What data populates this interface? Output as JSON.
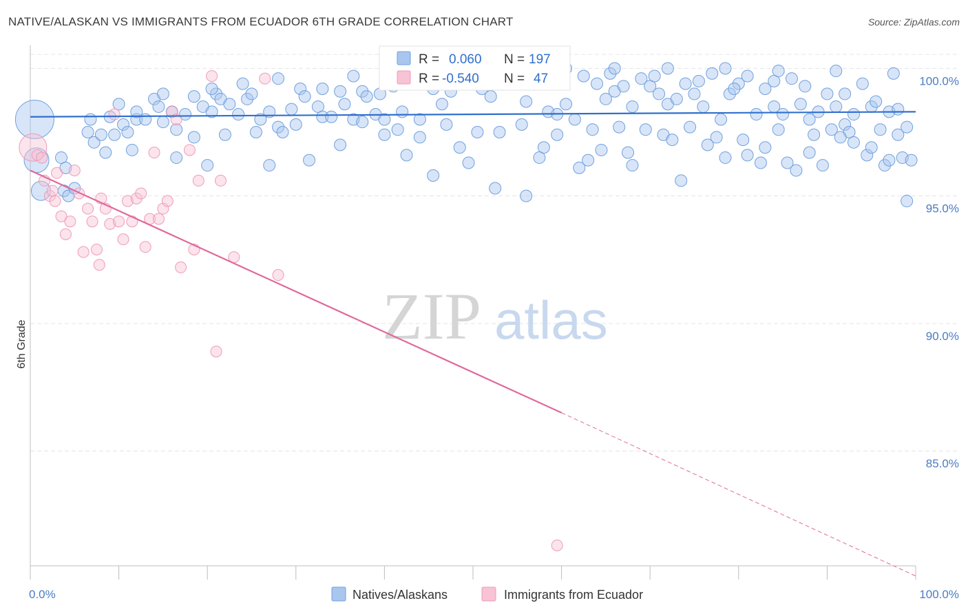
{
  "title": "NATIVE/ALASKAN VS IMMIGRANTS FROM ECUADOR 6TH GRADE CORRELATION CHART",
  "source": "Source: ZipAtlas.com",
  "watermark": {
    "zip": "ZIP",
    "atlas": "atlas"
  },
  "legend_top": [
    {
      "r_label": "R =",
      "r_value": "0.060",
      "n_label": "N =",
      "n_value": "197"
    },
    {
      "r_label": "R =",
      "r_value": "-0.540",
      "n_label": "N =",
      "n_value": "47"
    }
  ],
  "chart_data": {
    "type": "scatter",
    "title": "NATIVE/ALASKAN VS IMMIGRANTS FROM ECUADOR 6TH GRADE CORRELATION CHART",
    "xlabel": "",
    "ylabel": "6th Grade",
    "xlim": [
      0,
      100
    ],
    "ylim": [
      80.5,
      100.9
    ],
    "x_tick_labels": [
      "0.0%",
      "100.0%"
    ],
    "y_ticks": [
      85,
      90,
      95,
      100
    ],
    "y_tick_labels": [
      "85.0%",
      "90.0%",
      "95.0%",
      "100.0%"
    ],
    "grid": true,
    "legend_position": "bottom",
    "colors": {
      "natives": "#6fa0dd",
      "ecuador": "#f09ab8",
      "natives_line": "#2f6fcc",
      "ecuador_line": "#e0689a",
      "tick_label": "#4a7cc4"
    },
    "series": [
      {
        "name": "Natives/Alaskans",
        "r": 0.06,
        "n": 197,
        "trend": {
          "x": [
            0,
            100
          ],
          "y": [
            98.1,
            98.3
          ]
        },
        "points": [
          {
            "x": 0.5,
            "y": 98.0,
            "s": 28
          },
          {
            "x": 0.7,
            "y": 96.4,
            "s": 18
          },
          {
            "x": 1.2,
            "y": 95.2,
            "s": 14
          },
          {
            "x": 3.5,
            "y": 96.5
          },
          {
            "x": 3.8,
            "y": 95.2
          },
          {
            "x": 4.0,
            "y": 96.1
          },
          {
            "x": 4.3,
            "y": 95.0
          },
          {
            "x": 5.0,
            "y": 95.3
          },
          {
            "x": 6.5,
            "y": 97.5
          },
          {
            "x": 6.8,
            "y": 98.0
          },
          {
            "x": 7.2,
            "y": 97.1
          },
          {
            "x": 8.0,
            "y": 97.4
          },
          {
            "x": 8.5,
            "y": 96.7
          },
          {
            "x": 9.5,
            "y": 97.4
          },
          {
            "x": 10.5,
            "y": 97.8
          },
          {
            "x": 11.0,
            "y": 97.5
          },
          {
            "x": 12.0,
            "y": 98.0
          },
          {
            "x": 13.0,
            "y": 98.0
          },
          {
            "x": 14.0,
            "y": 98.8
          },
          {
            "x": 15.0,
            "y": 99.0
          },
          {
            "x": 16.0,
            "y": 98.3
          },
          {
            "x": 16.5,
            "y": 97.6
          },
          {
            "x": 17.5,
            "y": 98.2
          },
          {
            "x": 18.5,
            "y": 98.9
          },
          {
            "x": 19.5,
            "y": 98.5
          },
          {
            "x": 20.5,
            "y": 98.3
          },
          {
            "x": 21.0,
            "y": 99.0
          },
          {
            "x": 21.5,
            "y": 98.8
          },
          {
            "x": 22.5,
            "y": 98.6
          },
          {
            "x": 23.5,
            "y": 98.2
          },
          {
            "x": 24.5,
            "y": 98.8
          },
          {
            "x": 25.0,
            "y": 99.0
          },
          {
            "x": 26.0,
            "y": 98.0
          },
          {
            "x": 27.0,
            "y": 98.3
          },
          {
            "x": 28.0,
            "y": 97.7
          },
          {
            "x": 28.5,
            "y": 97.5
          },
          {
            "x": 29.5,
            "y": 98.4
          },
          {
            "x": 30.5,
            "y": 99.2
          },
          {
            "x": 31.0,
            "y": 98.9
          },
          {
            "x": 32.5,
            "y": 98.5
          },
          {
            "x": 33.0,
            "y": 98.1
          },
          {
            "x": 35.0,
            "y": 99.1
          },
          {
            "x": 35.5,
            "y": 98.6
          },
          {
            "x": 36.5,
            "y": 98.0
          },
          {
            "x": 37.5,
            "y": 99.1
          },
          {
            "x": 38.0,
            "y": 98.9
          },
          {
            "x": 39.0,
            "y": 98.2
          },
          {
            "x": 40.0,
            "y": 98.0
          },
          {
            "x": 41.0,
            "y": 99.3
          },
          {
            "x": 42.0,
            "y": 98.3
          },
          {
            "x": 43.0,
            "y": 99.4
          },
          {
            "x": 44.0,
            "y": 98.0
          },
          {
            "x": 44.5,
            "y": 99.4
          },
          {
            "x": 45.5,
            "y": 99.2
          },
          {
            "x": 46.5,
            "y": 98.6
          },
          {
            "x": 47.5,
            "y": 99.1
          },
          {
            "x": 48.0,
            "y": 99.6
          },
          {
            "x": 49.0,
            "y": 99.8
          },
          {
            "x": 50.0,
            "y": 99.7
          },
          {
            "x": 51.0,
            "y": 99.2
          },
          {
            "x": 52.0,
            "y": 98.9
          },
          {
            "x": 53.0,
            "y": 99.5
          },
          {
            "x": 55.0,
            "y": 99.7
          },
          {
            "x": 56.0,
            "y": 98.7
          },
          {
            "x": 57.0,
            "y": 99.6
          },
          {
            "x": 58.5,
            "y": 98.3
          },
          {
            "x": 59.5,
            "y": 98.2
          },
          {
            "x": 60.5,
            "y": 98.6
          },
          {
            "x": 61.5,
            "y": 98.0
          },
          {
            "x": 62.5,
            "y": 99.7
          },
          {
            "x": 64.0,
            "y": 99.4
          },
          {
            "x": 65.0,
            "y": 98.8
          },
          {
            "x": 66.0,
            "y": 99.1
          },
          {
            "x": 67.0,
            "y": 99.3
          },
          {
            "x": 68.0,
            "y": 98.5
          },
          {
            "x": 69.0,
            "y": 99.6
          },
          {
            "x": 70.0,
            "y": 99.3
          },
          {
            "x": 71.0,
            "y": 99.0
          },
          {
            "x": 72.0,
            "y": 98.6
          },
          {
            "x": 73.0,
            "y": 98.8
          },
          {
            "x": 74.0,
            "y": 99.4
          },
          {
            "x": 75.0,
            "y": 99.0
          },
          {
            "x": 76.0,
            "y": 98.5
          },
          {
            "x": 77.0,
            "y": 99.8
          },
          {
            "x": 78.0,
            "y": 98.0
          },
          {
            "x": 79.0,
            "y": 99.0
          },
          {
            "x": 80.0,
            "y": 99.4
          },
          {
            "x": 81.0,
            "y": 99.7
          },
          {
            "x": 82.0,
            "y": 98.2
          },
          {
            "x": 83.0,
            "y": 99.2
          },
          {
            "x": 84.0,
            "y": 98.5
          },
          {
            "x": 85.0,
            "y": 98.2
          },
          {
            "x": 86.0,
            "y": 99.6
          },
          {
            "x": 87.0,
            "y": 98.6
          },
          {
            "x": 88.0,
            "y": 98.0
          },
          {
            "x": 89.0,
            "y": 98.3
          },
          {
            "x": 90.0,
            "y": 99.0
          },
          {
            "x": 91.0,
            "y": 98.5
          },
          {
            "x": 92.0,
            "y": 97.8
          },
          {
            "x": 93.0,
            "y": 98.2
          },
          {
            "x": 94.0,
            "y": 99.4
          },
          {
            "x": 95.0,
            "y": 98.5
          },
          {
            "x": 96.0,
            "y": 97.6
          },
          {
            "x": 97.0,
            "y": 98.3
          },
          {
            "x": 98.0,
            "y": 97.4
          },
          {
            "x": 99.0,
            "y": 97.7
          },
          {
            "x": 56.0,
            "y": 95.0
          },
          {
            "x": 45.5,
            "y": 95.8
          },
          {
            "x": 52.5,
            "y": 95.3
          },
          {
            "x": 62.0,
            "y": 96.1
          },
          {
            "x": 63.0,
            "y": 96.4
          },
          {
            "x": 68.0,
            "y": 96.2
          },
          {
            "x": 73.5,
            "y": 95.6
          },
          {
            "x": 81.0,
            "y": 96.6
          },
          {
            "x": 82.5,
            "y": 96.3
          },
          {
            "x": 89.5,
            "y": 96.2
          },
          {
            "x": 96.5,
            "y": 96.2
          },
          {
            "x": 98.5,
            "y": 96.5
          },
          {
            "x": 99.0,
            "y": 94.8
          },
          {
            "x": 94.5,
            "y": 96.6
          },
          {
            "x": 86.5,
            "y": 96.0
          },
          {
            "x": 85.5,
            "y": 96.3
          },
          {
            "x": 92.5,
            "y": 97.5
          },
          {
            "x": 91.5,
            "y": 97.3
          },
          {
            "x": 90.5,
            "y": 97.6
          },
          {
            "x": 88.5,
            "y": 97.4
          },
          {
            "x": 84.5,
            "y": 97.6
          },
          {
            "x": 80.5,
            "y": 97.2
          },
          {
            "x": 77.5,
            "y": 97.3
          },
          {
            "x": 74.5,
            "y": 97.7
          },
          {
            "x": 71.5,
            "y": 97.4
          },
          {
            "x": 69.5,
            "y": 97.6
          },
          {
            "x": 66.5,
            "y": 97.7
          },
          {
            "x": 63.5,
            "y": 97.6
          },
          {
            "x": 59.5,
            "y": 97.4
          },
          {
            "x": 55.5,
            "y": 97.8
          },
          {
            "x": 53.0,
            "y": 97.5
          },
          {
            "x": 50.5,
            "y": 97.5
          },
          {
            "x": 47.0,
            "y": 97.8
          },
          {
            "x": 44.0,
            "y": 97.3
          },
          {
            "x": 41.5,
            "y": 97.6
          },
          {
            "x": 37.5,
            "y": 97.9
          },
          {
            "x": 34.0,
            "y": 98.1
          },
          {
            "x": 30.0,
            "y": 97.8
          },
          {
            "x": 25.5,
            "y": 97.5
          },
          {
            "x": 22.0,
            "y": 97.4
          },
          {
            "x": 18.5,
            "y": 97.3
          },
          {
            "x": 15.0,
            "y": 97.9
          },
          {
            "x": 12.0,
            "y": 98.3
          },
          {
            "x": 10.0,
            "y": 98.6
          },
          {
            "x": 9.0,
            "y": 98.1
          },
          {
            "x": 20.0,
            "y": 96.2
          },
          {
            "x": 27.0,
            "y": 96.2
          },
          {
            "x": 35.0,
            "y": 97.0
          },
          {
            "x": 40.0,
            "y": 97.4
          },
          {
            "x": 48.5,
            "y": 96.9
          },
          {
            "x": 58.0,
            "y": 96.9
          },
          {
            "x": 64.5,
            "y": 96.8
          },
          {
            "x": 72.5,
            "y": 97.2
          },
          {
            "x": 76.5,
            "y": 97.0
          },
          {
            "x": 83.0,
            "y": 96.9
          },
          {
            "x": 93.0,
            "y": 97.1
          },
          {
            "x": 97.0,
            "y": 96.4
          },
          {
            "x": 99.5,
            "y": 96.4
          },
          {
            "x": 14.5,
            "y": 98.5
          },
          {
            "x": 24.0,
            "y": 99.4
          },
          {
            "x": 33.0,
            "y": 99.2
          },
          {
            "x": 39.5,
            "y": 99.0
          },
          {
            "x": 46.0,
            "y": 99.4
          },
          {
            "x": 54.0,
            "y": 99.5
          },
          {
            "x": 60.0,
            "y": 99.7
          },
          {
            "x": 65.5,
            "y": 99.8
          },
          {
            "x": 70.5,
            "y": 99.7
          },
          {
            "x": 75.5,
            "y": 99.5
          },
          {
            "x": 79.5,
            "y": 99.2
          },
          {
            "x": 84.0,
            "y": 99.5
          },
          {
            "x": 87.5,
            "y": 99.3
          },
          {
            "x": 92.0,
            "y": 99.0
          },
          {
            "x": 95.5,
            "y": 98.7
          },
          {
            "x": 98.0,
            "y": 98.4
          },
          {
            "x": 11.5,
            "y": 96.8
          },
          {
            "x": 16.5,
            "y": 96.5
          },
          {
            "x": 31.5,
            "y": 96.4
          },
          {
            "x": 42.5,
            "y": 96.6
          },
          {
            "x": 49.5,
            "y": 96.3
          },
          {
            "x": 57.5,
            "y": 96.5
          },
          {
            "x": 67.5,
            "y": 96.7
          },
          {
            "x": 78.5,
            "y": 96.5
          },
          {
            "x": 88.0,
            "y": 96.7
          },
          {
            "x": 95.0,
            "y": 96.9
          },
          {
            "x": 20.5,
            "y": 99.2
          },
          {
            "x": 28.0,
            "y": 99.6
          },
          {
            "x": 36.5,
            "y": 99.7
          },
          {
            "x": 42.5,
            "y": 99.8
          },
          {
            "x": 51.5,
            "y": 100.0
          },
          {
            "x": 60.5,
            "y": 100.0
          },
          {
            "x": 66.0,
            "y": 100.0
          },
          {
            "x": 72.0,
            "y": 100.0
          },
          {
            "x": 78.5,
            "y": 100.0
          },
          {
            "x": 84.5,
            "y": 99.9
          },
          {
            "x": 91.0,
            "y": 99.9
          },
          {
            "x": 97.5,
            "y": 99.8
          }
        ]
      },
      {
        "name": "Immigrants from Ecuador",
        "r": -0.54,
        "n": 47,
        "trend": {
          "x": [
            0,
            60
          ],
          "y": [
            96.0,
            86.5
          ],
          "dashed_extension": {
            "x": [
              60,
              100
            ],
            "y": [
              86.5,
              80.1
            ]
          }
        },
        "points": [
          {
            "x": 0.3,
            "y": 96.9,
            "s": 20
          },
          {
            "x": 0.8,
            "y": 96.6
          },
          {
            "x": 1.3,
            "y": 96.5
          },
          {
            "x": 1.6,
            "y": 95.6
          },
          {
            "x": 2.2,
            "y": 95.0
          },
          {
            "x": 2.5,
            "y": 95.2
          },
          {
            "x": 2.8,
            "y": 94.8
          },
          {
            "x": 3.0,
            "y": 95.9
          },
          {
            "x": 3.5,
            "y": 94.2
          },
          {
            "x": 4.0,
            "y": 93.5
          },
          {
            "x": 4.5,
            "y": 94.0
          },
          {
            "x": 5.0,
            "y": 96.0
          },
          {
            "x": 5.5,
            "y": 95.1
          },
          {
            "x": 6.0,
            "y": 92.8
          },
          {
            "x": 6.5,
            "y": 94.5
          },
          {
            "x": 7.0,
            "y": 94.0
          },
          {
            "x": 7.5,
            "y": 92.9
          },
          {
            "x": 7.8,
            "y": 92.3
          },
          {
            "x": 8.0,
            "y": 94.9
          },
          {
            "x": 8.5,
            "y": 94.5
          },
          {
            "x": 9.0,
            "y": 93.9
          },
          {
            "x": 9.5,
            "y": 98.2
          },
          {
            "x": 10.0,
            "y": 94.0
          },
          {
            "x": 10.5,
            "y": 93.3
          },
          {
            "x": 11.0,
            "y": 94.8
          },
          {
            "x": 11.5,
            "y": 94.0
          },
          {
            "x": 12.0,
            "y": 94.9
          },
          {
            "x": 12.5,
            "y": 95.1
          },
          {
            "x": 13.0,
            "y": 93.0
          },
          {
            "x": 13.5,
            "y": 94.1
          },
          {
            "x": 14.0,
            "y": 96.7
          },
          {
            "x": 14.5,
            "y": 94.1
          },
          {
            "x": 15.0,
            "y": 94.5
          },
          {
            "x": 15.5,
            "y": 94.8
          },
          {
            "x": 16.0,
            "y": 98.3
          },
          {
            "x": 16.5,
            "y": 98.0
          },
          {
            "x": 17.0,
            "y": 92.2
          },
          {
            "x": 18.0,
            "y": 96.8
          },
          {
            "x": 18.5,
            "y": 92.9
          },
          {
            "x": 19.0,
            "y": 95.6
          },
          {
            "x": 20.5,
            "y": 99.7
          },
          {
            "x": 21.0,
            "y": 88.9
          },
          {
            "x": 21.5,
            "y": 95.6
          },
          {
            "x": 23.0,
            "y": 92.6
          },
          {
            "x": 26.5,
            "y": 99.6
          },
          {
            "x": 28.0,
            "y": 91.9
          },
          {
            "x": 59.5,
            "y": 81.3
          }
        ]
      }
    ],
    "bottom_legend": [
      "Natives/Alaskans",
      "Immigrants from Ecuador"
    ]
  }
}
